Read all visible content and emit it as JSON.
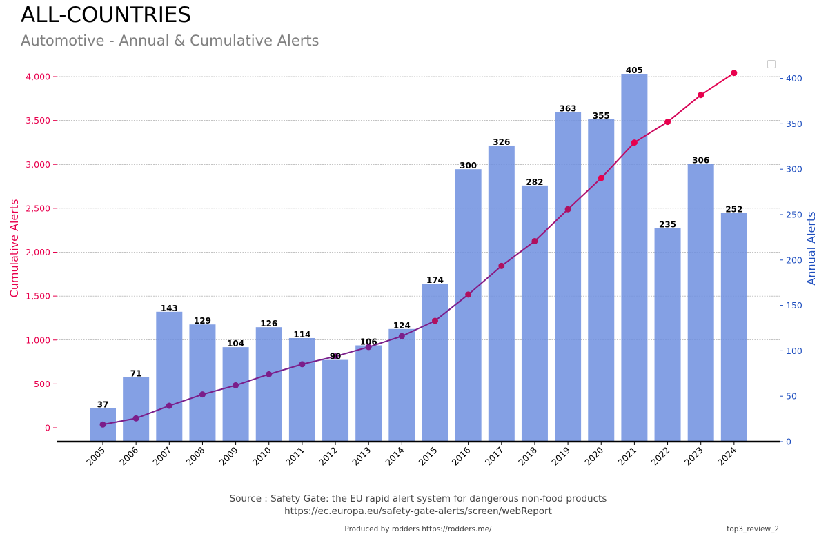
{
  "header": {
    "title": "ALL-COUNTRIES",
    "subtitle": "Automotive - Annual & Cumulative Alerts"
  },
  "footer": {
    "source_line1": "Source : Safety Gate: the EU rapid alert system for dangerous non-food products",
    "source_line2": "https://ec.europa.eu/safety-gate-alerts/screen/webReport",
    "produced_by": "Produced by rodders https://rodders.me/",
    "review_tag": "top3_review_2"
  },
  "colors": {
    "bar": "#6f8fdf",
    "bar_opacity": 0.85,
    "line_start": "#7b1e8a",
    "line_end": "#e8004d",
    "left_axis": "#e8004d",
    "right_axis": "#1f4fbf",
    "grid": "#888888"
  },
  "chart_data": {
    "type": "bar",
    "categories": [
      "2005",
      "2006",
      "2007",
      "2008",
      "2009",
      "2010",
      "2011",
      "2012",
      "2013",
      "2014",
      "2015",
      "2016",
      "2017",
      "2018",
      "2019",
      "2020",
      "2021",
      "2022",
      "2023",
      "2024"
    ],
    "series": [
      {
        "type": "bar",
        "axis": "right",
        "values": [
          37,
          71,
          143,
          129,
          104,
          126,
          114,
          90,
          106,
          124,
          174,
          300,
          326,
          282,
          363,
          355,
          405,
          235,
          306,
          252
        ]
      },
      {
        "type": "line",
        "axis": "left",
        "values": [
          37,
          108,
          251,
          380,
          484,
          610,
          724,
          814,
          920,
          1044,
          1218,
          1518,
          1844,
          2126,
          2489,
          2844,
          3249,
          3484,
          3790,
          4042
        ]
      }
    ],
    "ylabel_left": "Cumulative Alerts",
    "ylabel_right": "Annual Alerts",
    "ylim_left": [
      -150,
      4150
    ],
    "ylim_right": [
      0,
      415
    ],
    "yticks_left": [
      0,
      500,
      1000,
      1500,
      2000,
      2500,
      3000,
      3500,
      4000
    ],
    "ytick_labels_left": [
      "0",
      "500",
      "1,000",
      "1,500",
      "2,000",
      "2,500",
      "3,000",
      "3,500",
      "4,000"
    ],
    "yticks_right": [
      0,
      50,
      100,
      150,
      200,
      250,
      300,
      350,
      400
    ],
    "ytick_labels_right": [
      "0",
      "50",
      "100",
      "150",
      "200",
      "250",
      "300",
      "350",
      "400"
    ],
    "grid": "horizontal dashed",
    "legend": "top-right (empty)"
  }
}
